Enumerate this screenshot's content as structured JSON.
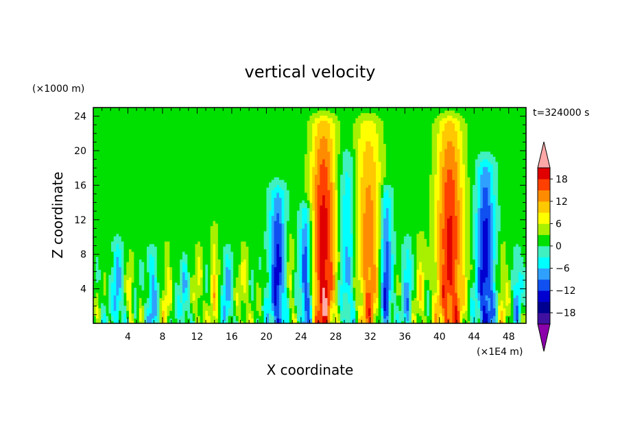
{
  "chart_data": {
    "type": "heatmap",
    "title": "vertical velocity",
    "xlabel": "X coordinate",
    "ylabel": "Z coordinate",
    "x_unit": "(×1E4 m)",
    "y_unit": "(×1000 m)",
    "time_label": "t=324000 s",
    "xlim": [
      0,
      50
    ],
    "ylim": [
      0,
      25
    ],
    "x_ticks": [
      "4",
      "8",
      "12",
      "16",
      "20",
      "24",
      "28",
      "32",
      "36",
      "40",
      "44",
      "48"
    ],
    "y_ticks": [
      "4",
      "8",
      "12",
      "16",
      "20",
      "24"
    ],
    "colorbar": {
      "levels": [
        -21,
        -18,
        -15,
        -12,
        -9,
        -6,
        -3,
        0,
        3,
        6,
        9,
        12,
        15,
        18,
        21
      ],
      "tick_labels": [
        "18",
        "12",
        "6",
        "0",
        "−6",
        "−12",
        "−18"
      ],
      "colors": [
        "#8b00aa",
        "#4010a0",
        "#000090",
        "#0000d0",
        "#1050f0",
        "#30a0ff",
        "#00ffff",
        "#40f0c0",
        "#00e000",
        "#a8f000",
        "#ffff00",
        "#ffc800",
        "#ff8c00",
        "#ff4000",
        "#e00000",
        "#ffa8a8"
      ]
    },
    "features": [
      {
        "x": 2.8,
        "width": 0.5,
        "amp": -9,
        "top": 9
      },
      {
        "x": 4.3,
        "width": 0.4,
        "amp": 6,
        "top": 8
      },
      {
        "x": 6.8,
        "width": 0.5,
        "amp": -8,
        "top": 8
      },
      {
        "x": 8.5,
        "width": 0.5,
        "amp": 6,
        "top": 9
      },
      {
        "x": 10.5,
        "width": 0.4,
        "amp": -7,
        "top": 7
      },
      {
        "x": 12.2,
        "width": 0.5,
        "amp": 6,
        "top": 9
      },
      {
        "x": 14.0,
        "width": 0.5,
        "amp": 7,
        "top": 11
      },
      {
        "x": 15.5,
        "width": 0.5,
        "amp": -8,
        "top": 8
      },
      {
        "x": 17.4,
        "width": 0.6,
        "amp": 6,
        "top": 9
      },
      {
        "x": 21.3,
        "width": 0.9,
        "amp": -14,
        "top": 15
      },
      {
        "x": 22.8,
        "width": 0.5,
        "amp": 5,
        "top": 11
      },
      {
        "x": 24.6,
        "width": 0.7,
        "amp": -15,
        "top": 13
      },
      {
        "x": 26.6,
        "width": 1.5,
        "amp": 19,
        "top": 23
      },
      {
        "x": 29.4,
        "width": 1.0,
        "amp": -9,
        "top": 19
      },
      {
        "x": 31.8,
        "width": 1.6,
        "amp": 13,
        "top": 23
      },
      {
        "x": 33.8,
        "width": 0.7,
        "amp": -14,
        "top": 15
      },
      {
        "x": 36.3,
        "width": 0.5,
        "amp": -7,
        "top": 9
      },
      {
        "x": 37.8,
        "width": 0.6,
        "amp": 6,
        "top": 10
      },
      {
        "x": 41.2,
        "width": 1.6,
        "amp": 18,
        "top": 23
      },
      {
        "x": 45.3,
        "width": 1.0,
        "amp": -15,
        "top": 18
      },
      {
        "x": 47.3,
        "width": 0.6,
        "amp": 6,
        "top": 9
      },
      {
        "x": 49.0,
        "width": 0.5,
        "amp": -6,
        "top": 8
      }
    ]
  }
}
